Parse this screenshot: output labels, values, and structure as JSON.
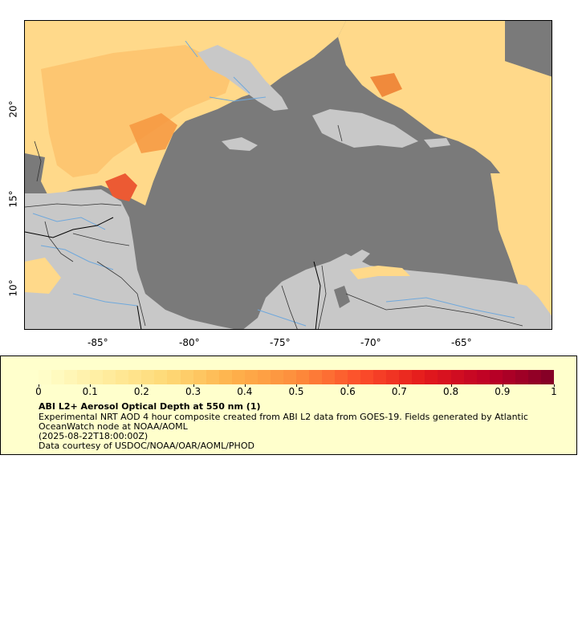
{
  "map": {
    "lon_ticks": [
      "-85°",
      "-80°",
      "-75°",
      "-70°",
      "-65°"
    ],
    "lat_ticks": [
      "20°",
      "15°",
      "10°"
    ],
    "colors": {
      "ocean_nodata": "#7a7a7a",
      "land_nodata": "#c8c8c8",
      "rivers": "#6fa8dc",
      "borders": "#000000",
      "aod_low": "#ffdb80",
      "aod_mid": "#f7a545",
      "aod_high": "#e8432c"
    }
  },
  "legend": {
    "colorbar_ticks": [
      "0",
      "0.1",
      "0.2",
      "0.3",
      "0.4",
      "0.5",
      "0.6",
      "0.7",
      "0.8",
      "0.9",
      "1"
    ],
    "colorbar_range": [
      0,
      1
    ],
    "colormap": "YlOrRd",
    "title": "ABI L2+ Aerosol Optical Depth at 550 nm (1)",
    "description_line1": "Experimental NRT AOD 4 hour composite created from ABI L2 data from GOES-19. Fields generated by Atlantic",
    "description_line2": "OceanWatch node at NOAA/AOML",
    "date": "(2025-08-22T18:00:00Z)",
    "credit": "Data courtesy of USDOC/NOAA/OAR/AOML/PHOD"
  }
}
